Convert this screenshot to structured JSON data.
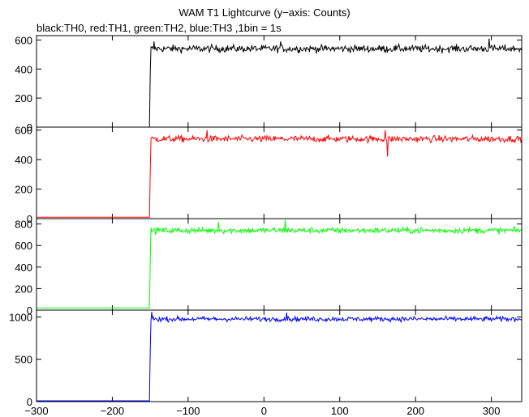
{
  "title": "WAM T1 Lightcurve (y−axis: Counts)",
  "subtitle": "black:TH0, red:TH1, green:TH2, blue:TH3 ,1bin = 1s",
  "chart_data": [
    {
      "type": "line",
      "name": "TH0",
      "color": "#000000",
      "xlim": [
        -300,
        340
      ],
      "ylim": [
        0,
        630
      ],
      "yticks": [
        0,
        200,
        400,
        600
      ],
      "pre_level": 0,
      "onset_x": -150,
      "spike_value": 380,
      "post_mean": 540,
      "post_noise": 25,
      "peaks": [
        {
          "x": 297,
          "y": 610
        },
        {
          "x": -145,
          "y": 590
        },
        {
          "x": 22,
          "y": 590
        }
      ]
    },
    {
      "type": "line",
      "name": "TH1",
      "color": "#ff0000",
      "xlim": [
        -300,
        340
      ],
      "ylim": [
        0,
        620
      ],
      "yticks": [
        0,
        200,
        400,
        600
      ],
      "pre_level": 10,
      "onset_x": -150,
      "spike_value": 330,
      "post_mean": 540,
      "post_noise": 22,
      "peaks": [
        {
          "x": -75,
          "y": 600
        },
        {
          "x": 160,
          "y": 600
        },
        {
          "x": 163,
          "y": 420
        }
      ]
    },
    {
      "type": "line",
      "name": "TH2",
      "color": "#00ff00",
      "xlim": [
        -300,
        340
      ],
      "ylim": [
        0,
        850
      ],
      "yticks": [
        0,
        200,
        400,
        600,
        800
      ],
      "pre_level": 20,
      "onset_x": -150,
      "spike_value": 480,
      "post_mean": 740,
      "post_noise": 28,
      "peaks": [
        {
          "x": 28,
          "y": 840
        },
        {
          "x": -60,
          "y": 820
        }
      ]
    },
    {
      "type": "line",
      "name": "TH3",
      "color": "#0000ff",
      "xlim": [
        -300,
        340
      ],
      "ylim": [
        0,
        1080
      ],
      "yticks": [
        0,
        500,
        1000
      ],
      "xticks": [
        -300,
        -200,
        -100,
        0,
        100,
        200,
        300
      ],
      "pre_level": 10,
      "onset_x": -150,
      "spike_value": 620,
      "post_mean": 975,
      "post_noise": 28,
      "peaks": [
        {
          "x": -148,
          "y": 1060
        },
        {
          "x": 30,
          "y": 1050
        }
      ]
    }
  ]
}
